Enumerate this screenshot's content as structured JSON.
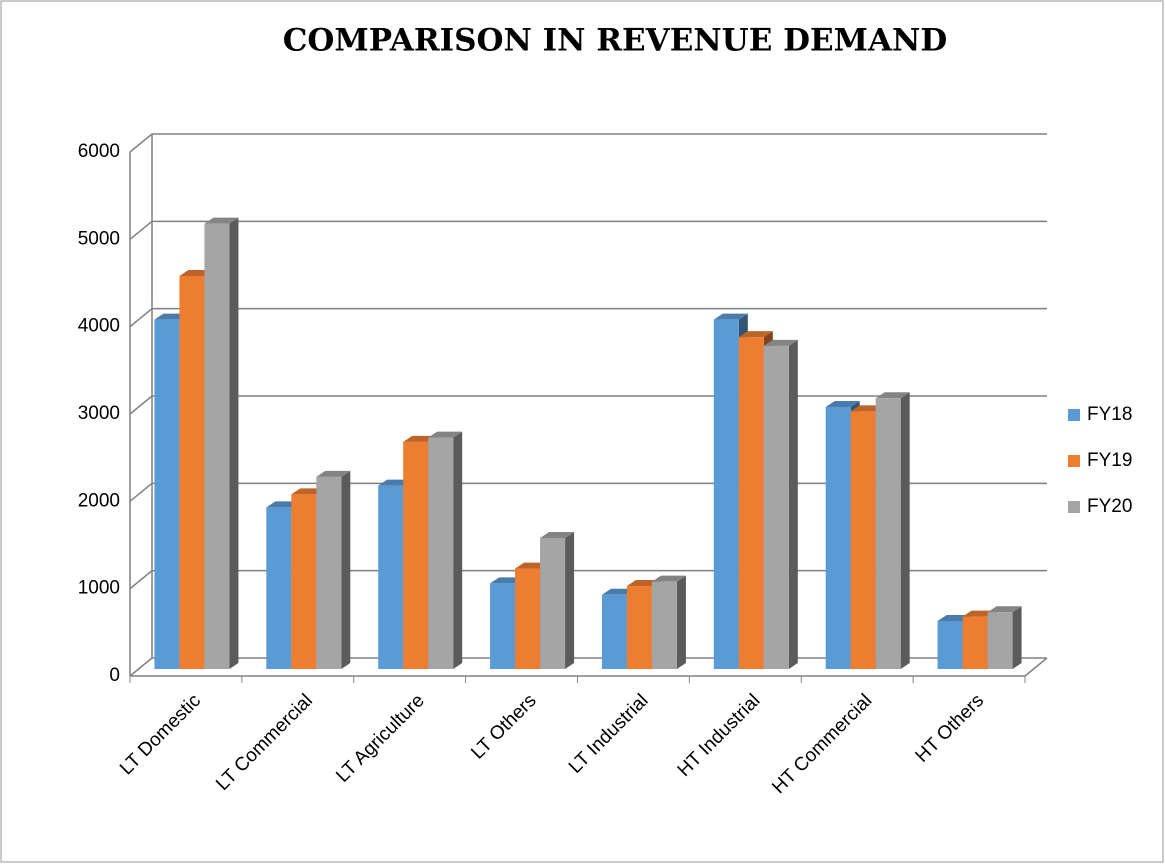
{
  "chart_data": {
    "type": "bar3d",
    "title": "COMPARISON IN REVENUE DEMAND",
    "categories": [
      "LT Domestic",
      "LT Commercial",
      "LT Agriculture",
      "LT Others",
      "LT Industrial",
      "HT Industrial",
      "HT Commercial",
      "HT Others"
    ],
    "series": [
      {
        "name": "FY18",
        "color": "#5b9bd5",
        "values": [
          4000,
          1850,
          2100,
          980,
          850,
          4000,
          3000,
          550
        ]
      },
      {
        "name": "FY19",
        "color": "#ed7d31",
        "values": [
          4500,
          2000,
          2600,
          1150,
          950,
          3800,
          2950,
          600
        ]
      },
      {
        "name": "FY20",
        "color": "#a5a5a5",
        "values": [
          5100,
          2200,
          2650,
          1500,
          1000,
          3700,
          3100,
          650
        ]
      }
    ],
    "ylim": [
      0,
      6000
    ],
    "yticks": [
      0,
      1000,
      2000,
      3000,
      4000,
      5000,
      6000
    ],
    "grid": true,
    "legend": "right"
  }
}
